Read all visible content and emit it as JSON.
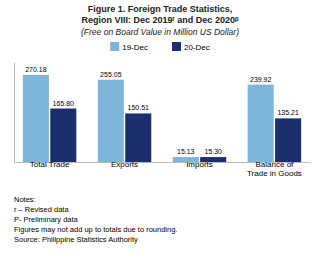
{
  "chart_data": {
    "type": "bar",
    "title": "Figure 1. Foreign Trade Statistics,\nRegion VIII: Dec 2019ʳ and Dec 2020ᵖ",
    "subtitle": "(Free on Board Value in Million US Dollar)",
    "categories": [
      "Total Trade",
      "Exports",
      "Imports",
      "Balance of\nTrade in Goods"
    ],
    "series": [
      {
        "name": "19-Dec",
        "color": "#7EB6D9",
        "values": [
          270.18,
          255.05,
          15.13,
          239.92
        ],
        "value_labels": [
          "270.18",
          "255.05",
          "15.13",
          "239.92"
        ]
      },
      {
        "name": "20-Dec",
        "color": "#1B2F6E",
        "values": [
          165.8,
          150.51,
          15.3,
          135.21
        ],
        "value_labels": [
          "165.80",
          "150.51",
          "15.30",
          "135.21"
        ]
      }
    ],
    "ylim": [
      0,
      310
    ],
    "tick_labels": "x",
    "grid": false,
    "legend": "top",
    "data_labels": true,
    "annotations": [
      "Notes:",
      "r – Revised data",
      "P- Preliminary data",
      "Figures may not add up to totals due to rounding.",
      "Source: Philippine Statistics Authority"
    ]
  }
}
